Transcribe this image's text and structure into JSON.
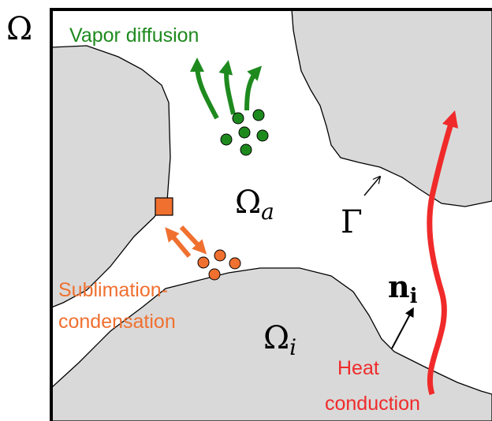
{
  "labels": {
    "domain": "Ω",
    "vapor": "Vapor diffusion",
    "air": {
      "base": "Ω",
      "sub": "a"
    },
    "interface": "Γ",
    "normal": {
      "base": "n",
      "sub": "i"
    },
    "sublimation": [
      "Sublimation-",
      "condensation"
    ],
    "ice": {
      "base": "Ω",
      "sub": "i"
    },
    "heat": [
      "Heat",
      "conduction"
    ]
  }
}
